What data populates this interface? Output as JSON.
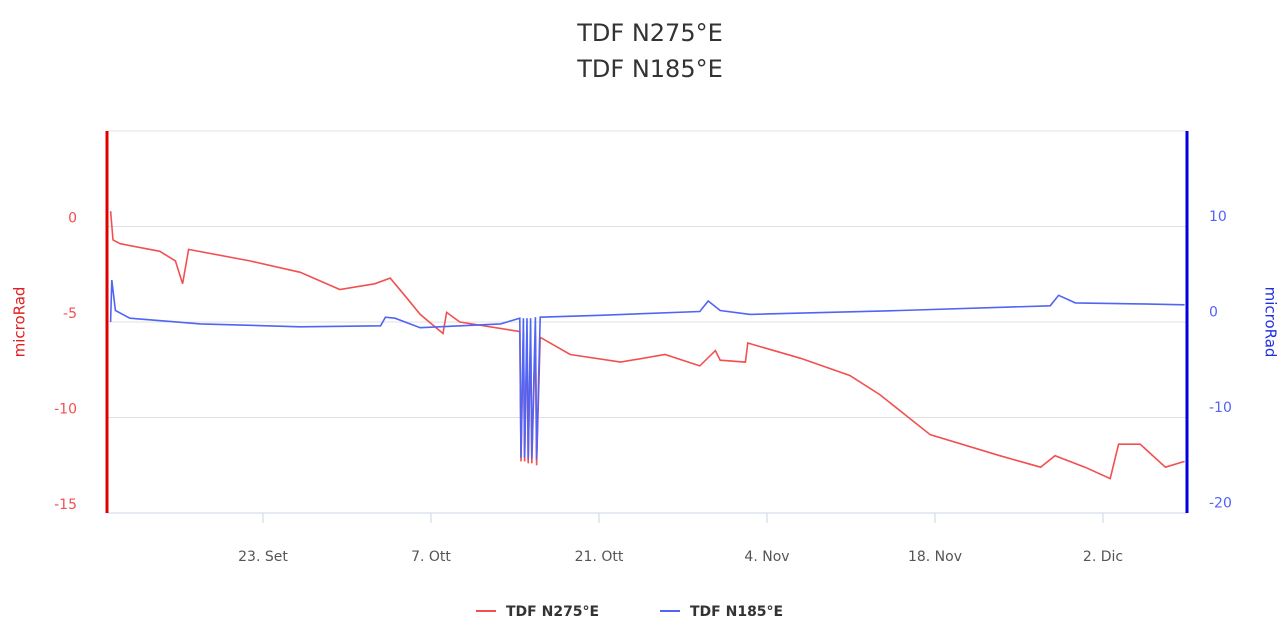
{
  "chart_data": {
    "type": "line",
    "title": "TDF N275°E",
    "subtitle": "TDF N185°E",
    "ylabel": "microRad",
    "y2label": "microRad",
    "xlim": [
      0,
      90
    ],
    "xticks": [
      {
        "value": 13,
        "label": "23. Set"
      },
      {
        "value": 27,
        "label": "7. Ott"
      },
      {
        "value": 41,
        "label": "21. Ott"
      },
      {
        "value": 55,
        "label": "4. Nov"
      },
      {
        "value": 69,
        "label": "18. Nov"
      },
      {
        "value": 83,
        "label": "2. Dic"
      }
    ],
    "ylim": [
      -15,
      5
    ],
    "yticks": [
      -15,
      -10,
      -5,
      0
    ],
    "y2lim": [
      -21,
      19
    ],
    "y2ticks": [
      -20,
      -10,
      0,
      10
    ],
    "grid": true,
    "legend": "bottom",
    "series": [
      {
        "name": "TDF N275°E",
        "color": "#f25050",
        "x": [
          0.3,
          0.5,
          1.1,
          4.4,
          5.7,
          6.3,
          6.8,
          11.9,
          16.1,
          19.4,
          22.3,
          23.6,
          24.8,
          26.1,
          28.0,
          28.3,
          29.4,
          34.4,
          34.5,
          34.7,
          34.8,
          35.0,
          35.1,
          35.3,
          35.4,
          35.7,
          35.8,
          36.1,
          38.6,
          42.8,
          46.5,
          49.4,
          50.7,
          51.1,
          53.2,
          53.4,
          57.8,
          61.9,
          64.4,
          68.6,
          74.4,
          77.8,
          79.0,
          81.5,
          83.6,
          84.3,
          86.1,
          88.2,
          89.8
        ],
        "values": [
          0.8,
          -0.7,
          -0.9,
          -1.3,
          -1.8,
          -3.0,
          -1.2,
          -1.8,
          -2.4,
          -3.3,
          -3.0,
          -2.7,
          -3.6,
          -4.6,
          -5.6,
          -4.5,
          -5.0,
          -5.5,
          -12.3,
          -5.5,
          -12.3,
          -5.6,
          -12.4,
          -5.6,
          -12.4,
          -5.7,
          -12.5,
          -5.8,
          -6.7,
          -7.1,
          -6.7,
          -7.3,
          -6.5,
          -7.0,
          -7.1,
          -6.1,
          -6.9,
          -7.8,
          -8.8,
          -10.9,
          -12.0,
          -12.6,
          -12.0,
          -12.6,
          -13.2,
          -11.4,
          -11.4,
          -12.6,
          -12.3
        ]
      },
      {
        "name": "TDF N185°E",
        "color": "#5064f5",
        "axis": "y2",
        "x": [
          0.3,
          0.4,
          0.7,
          1.9,
          7.8,
          16.1,
          22.8,
          23.2,
          24.0,
          26.1,
          32.8,
          34.4,
          34.5,
          34.7,
          34.8,
          35.0,
          35.1,
          35.3,
          35.4,
          35.7,
          35.8,
          36.1,
          41.1,
          49.4,
          50.1,
          51.1,
          53.6,
          66.1,
          78.6,
          79.3,
          80.7,
          86.1,
          89.8
        ],
        "values": [
          -1.0,
          3.4,
          0.2,
          -0.6,
          -1.2,
          -1.5,
          -1.4,
          -0.5,
          -0.6,
          -1.6,
          -1.2,
          -0.6,
          -15.2,
          -0.6,
          -15.2,
          -0.6,
          -15.3,
          -0.6,
          -15.3,
          -0.5,
          -15.4,
          -0.5,
          -0.3,
          0.1,
          1.2,
          0.2,
          -0.2,
          0.2,
          0.7,
          1.8,
          1.0,
          0.9,
          0.8
        ]
      }
    ]
  }
}
